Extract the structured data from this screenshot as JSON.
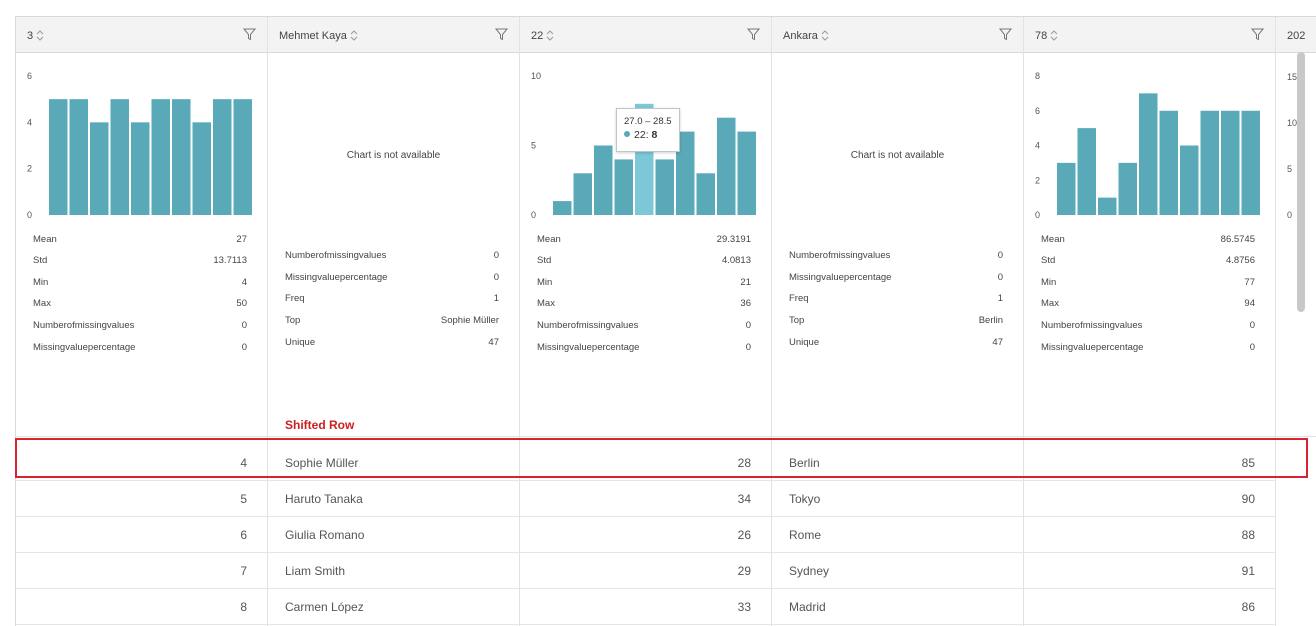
{
  "columns": [
    {
      "header": "3",
      "type": "numeric",
      "chart_type": "histogram",
      "chart": {
        "yticks": [
          "0",
          "2",
          "4",
          "6"
        ],
        "ymax": 6,
        "values": [
          5,
          5,
          4,
          5,
          4,
          5,
          5,
          4,
          5,
          5
        ]
      },
      "stats": [
        {
          "k": "Mean",
          "v": "27"
        },
        {
          "k": "Std",
          "v": "13.7113"
        },
        {
          "k": "Min",
          "v": "4"
        },
        {
          "k": "Max",
          "v": "50"
        },
        {
          "k": "Numberofmissingvalues",
          "v": "0"
        },
        {
          "k": "Missingvaluepercentage",
          "v": "0"
        }
      ],
      "rows": [
        "4",
        "5",
        "6",
        "7",
        "8"
      ]
    },
    {
      "header": "Mehmet Kaya",
      "type": "text",
      "chart_na": "Chart is not available",
      "stats": [
        {
          "k": "Numberofmissingvalues",
          "v": "0"
        },
        {
          "k": "Missingvaluepercentage",
          "v": "0"
        },
        {
          "k": "Freq",
          "v": "1"
        },
        {
          "k": "Top",
          "v": "Sophie Müller"
        },
        {
          "k": "Unique",
          "v": "47"
        }
      ],
      "rows": [
        "Sophie Müller",
        "Haruto Tanaka",
        "Giulia Romano",
        "Liam Smith",
        "Carmen López"
      ]
    },
    {
      "header": "22",
      "type": "numeric",
      "chart_type": "histogram",
      "chart": {
        "yticks": [
          "0",
          "5",
          "10"
        ],
        "ymax": 10,
        "values": [
          1,
          3,
          5,
          4,
          8,
          4,
          6,
          3,
          7,
          6
        ],
        "highlight_index": 4
      },
      "tooltip": {
        "range": "27.0 – 28.5",
        "series": "22",
        "value": "8"
      },
      "stats": [
        {
          "k": "Mean",
          "v": "29.3191"
        },
        {
          "k": "Std",
          "v": "4.0813"
        },
        {
          "k": "Min",
          "v": "21"
        },
        {
          "k": "Max",
          "v": "36"
        },
        {
          "k": "Numberofmissingvalues",
          "v": "0"
        },
        {
          "k": "Missingvaluepercentage",
          "v": "0"
        }
      ],
      "rows": [
        "28",
        "34",
        "26",
        "29",
        "33"
      ]
    },
    {
      "header": "Ankara",
      "type": "text",
      "chart_na": "Chart is not available",
      "stats": [
        {
          "k": "Numberofmissingvalues",
          "v": "0"
        },
        {
          "k": "Missingvaluepercentage",
          "v": "0"
        },
        {
          "k": "Freq",
          "v": "1"
        },
        {
          "k": "Top",
          "v": "Berlin"
        },
        {
          "k": "Unique",
          "v": "47"
        }
      ],
      "rows": [
        "Berlin",
        "Tokyo",
        "Rome",
        "Sydney",
        "Madrid"
      ]
    },
    {
      "header": "78",
      "type": "numeric",
      "chart_type": "histogram",
      "chart": {
        "yticks": [
          "0",
          "2",
          "4",
          "6",
          "8"
        ],
        "ymax": 8,
        "values": [
          3,
          5,
          1,
          3,
          7,
          6,
          4,
          6,
          6,
          6
        ]
      },
      "stats": [
        {
          "k": "Mean",
          "v": "86.5745"
        },
        {
          "k": "Std",
          "v": "4.8756"
        },
        {
          "k": "Min",
          "v": "77"
        },
        {
          "k": "Max",
          "v": "94"
        },
        {
          "k": "Numberofmissingvalues",
          "v": "0"
        },
        {
          "k": "Missingvaluepercentage",
          "v": "0"
        }
      ],
      "rows": [
        "85",
        "90",
        "88",
        "91",
        "86"
      ]
    },
    {
      "header": "202",
      "type": "partial",
      "ticks": [
        "15",
        "10",
        "5",
        "0"
      ]
    }
  ],
  "annotation": {
    "shift_label": "Shifted Row"
  },
  "colors": {
    "bar": "#5aa9b9",
    "bar_highlight": "#7cc8d6",
    "highlight_border": "#d9232e",
    "annotation_text": "#cc1f1f"
  }
}
